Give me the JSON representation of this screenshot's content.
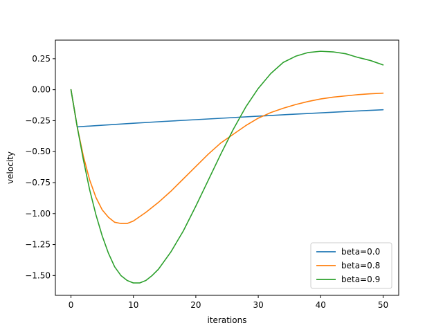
{
  "chart_data": {
    "type": "line",
    "title": "",
    "xlabel": "iterations",
    "ylabel": "velocity",
    "xlim": [
      -2.5,
      52.5
    ],
    "ylim": [
      -1.66,
      0.4
    ],
    "x_ticks": [
      0,
      10,
      20,
      30,
      40,
      50
    ],
    "x_tick_labels": [
      "0",
      "10",
      "20",
      "30",
      "40",
      "50"
    ],
    "y_ticks": [
      0.25,
      0.0,
      -0.25,
      -0.5,
      -0.75,
      -1.0,
      -1.25,
      -1.5
    ],
    "y_tick_labels": [
      "0.25",
      "0.00",
      "−0.25",
      "−0.50",
      "−0.75",
      "−1.00",
      "−1.25",
      "−1.50"
    ],
    "grid": false,
    "legend_position": "lower-right",
    "series": [
      {
        "name": "beta=0.0",
        "color": "#1f77b4",
        "x": [
          0,
          1,
          5,
          10,
          15,
          20,
          25,
          30,
          35,
          40,
          45,
          50
        ],
        "y": [
          0.0,
          -0.3,
          -0.287,
          -0.271,
          -0.256,
          -0.242,
          -0.228,
          -0.214,
          -0.2,
          -0.187,
          -0.174,
          -0.162
        ]
      },
      {
        "name": "beta=0.8",
        "color": "#ff7f0e",
        "x": [
          0,
          1,
          2,
          3,
          4,
          5,
          6,
          7,
          8,
          9,
          10,
          12,
          14,
          16,
          18,
          20,
          22,
          24,
          26,
          28,
          30,
          32,
          34,
          36,
          38,
          40,
          42,
          44,
          46,
          48,
          50
        ],
        "y": [
          0.0,
          -0.3,
          -0.54,
          -0.73,
          -0.87,
          -0.97,
          -1.03,
          -1.07,
          -1.08,
          -1.08,
          -1.06,
          -0.99,
          -0.91,
          -0.82,
          -0.72,
          -0.62,
          -0.52,
          -0.43,
          -0.36,
          -0.29,
          -0.23,
          -0.185,
          -0.15,
          -0.12,
          -0.095,
          -0.075,
          -0.06,
          -0.05,
          -0.04,
          -0.033,
          -0.028
        ]
      },
      {
        "name": "beta=0.9",
        "color": "#2ca02c",
        "x": [
          0,
          1,
          2,
          3,
          4,
          5,
          6,
          7,
          8,
          9,
          10,
          11,
          12,
          13,
          14,
          16,
          18,
          20,
          22,
          24,
          26,
          28,
          30,
          32,
          34,
          36,
          38,
          40,
          42,
          44,
          46,
          48,
          50
        ],
        "y": [
          0.0,
          -0.3,
          -0.57,
          -0.81,
          -1.01,
          -1.18,
          -1.32,
          -1.43,
          -1.5,
          -1.54,
          -1.56,
          -1.56,
          -1.54,
          -1.5,
          -1.45,
          -1.31,
          -1.14,
          -0.94,
          -0.73,
          -0.52,
          -0.32,
          -0.14,
          0.01,
          0.13,
          0.22,
          0.27,
          0.3,
          0.31,
          0.305,
          0.29,
          0.26,
          0.235,
          0.2
        ]
      }
    ]
  }
}
